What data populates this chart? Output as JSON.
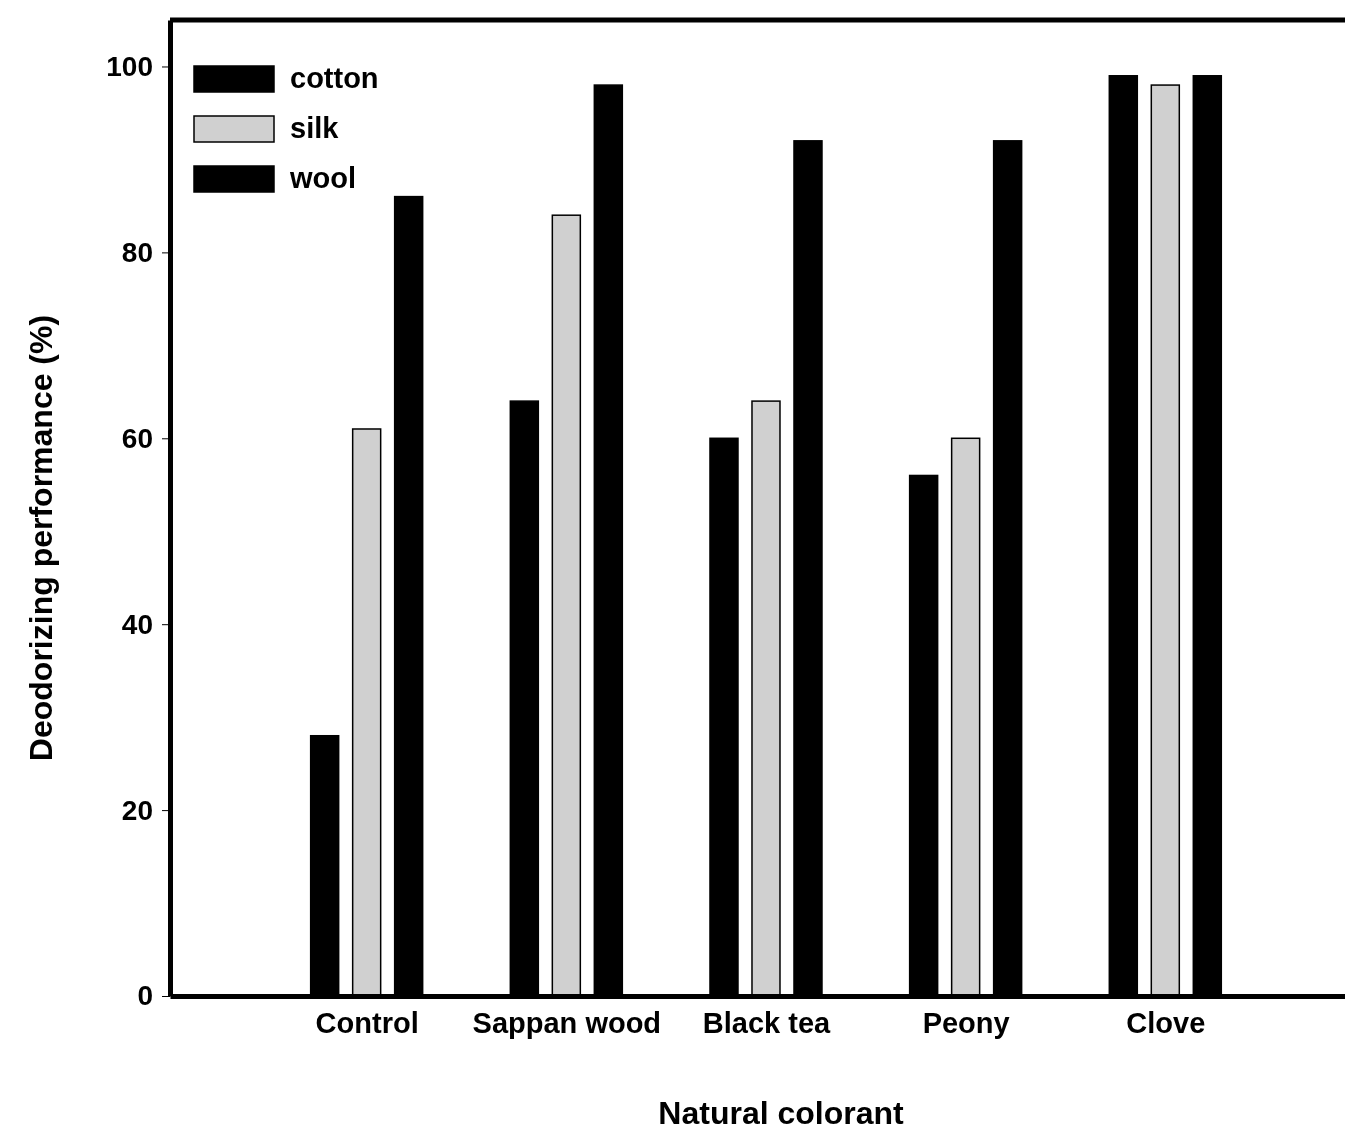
{
  "chart_data": {
    "type": "bar",
    "xlabel": "Natural colorant",
    "ylabel": "Deodorizing performance (%)",
    "categories": [
      "Control",
      "Sappan wood",
      "Black tea",
      "Peony",
      "Clove"
    ],
    "series": [
      {
        "name": "cotton",
        "color": "#000000",
        "values": [
          28,
          64,
          60,
          56,
          99
        ]
      },
      {
        "name": "silk",
        "color": "#d0d0d0",
        "values": [
          61,
          84,
          64,
          60,
          98
        ]
      },
      {
        "name": "wool",
        "color": "#000000",
        "values": [
          86,
          98,
          92,
          92,
          99
        ]
      }
    ],
    "ylim": [
      0,
      105
    ],
    "yticks": [
      0,
      20,
      40,
      60,
      80,
      100
    ],
    "grid": false,
    "legend": "top left"
  }
}
